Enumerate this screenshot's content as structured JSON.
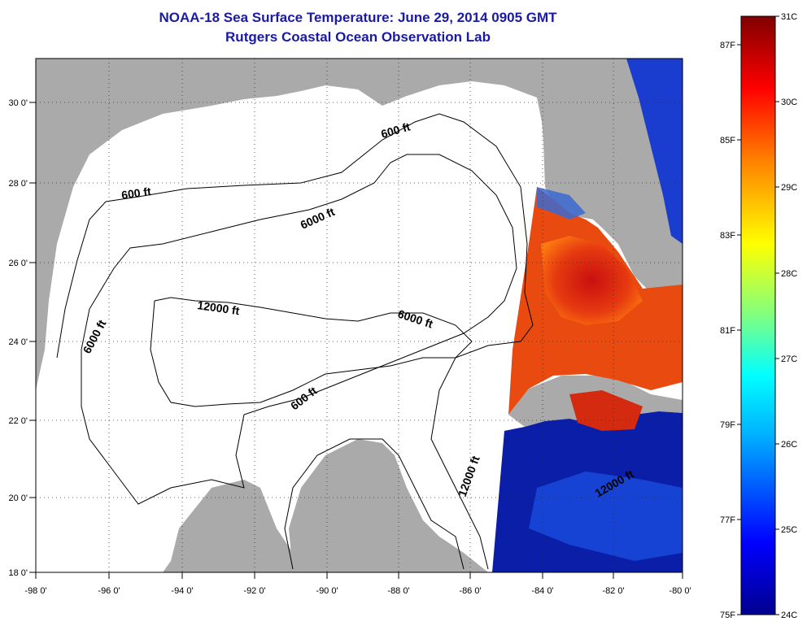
{
  "title": {
    "line1": "NOAA-18 Sea Surface Temperature:  June 29, 2014 0905 GMT",
    "line2": "Rutgers Coastal Ocean Observation Lab"
  },
  "axes": {
    "x_ticks": [
      "-98 0'",
      "-96 0'",
      "-94 0'",
      "-92 0'",
      "-90 0'",
      "-88 0'",
      "-86 0'",
      "-84 0'",
      "-82 0'",
      "-80 0'"
    ],
    "y_ticks": [
      "30 0'",
      "28 0'",
      "26 0'",
      "24 0'",
      "22 0'",
      "20 0'",
      "18 0'"
    ]
  },
  "contour_labels": {
    "c1": "600 ft",
    "c2": "600 ft",
    "c3": "6000 ft",
    "c4": "12000 ft",
    "c5": "6000 ft",
    "c6": "6000 ft",
    "c7": "600 ft",
    "c8": "12000 ft",
    "c9": "12000 ft"
  },
  "colorbar": {
    "celsius": [
      "31C",
      "30C",
      "29C",
      "28C",
      "27C",
      "26C",
      "25C",
      "24C"
    ],
    "fahrenheit": [
      "87F",
      "85F",
      "83F",
      "81F",
      "79F",
      "77F",
      "75F"
    ]
  }
}
